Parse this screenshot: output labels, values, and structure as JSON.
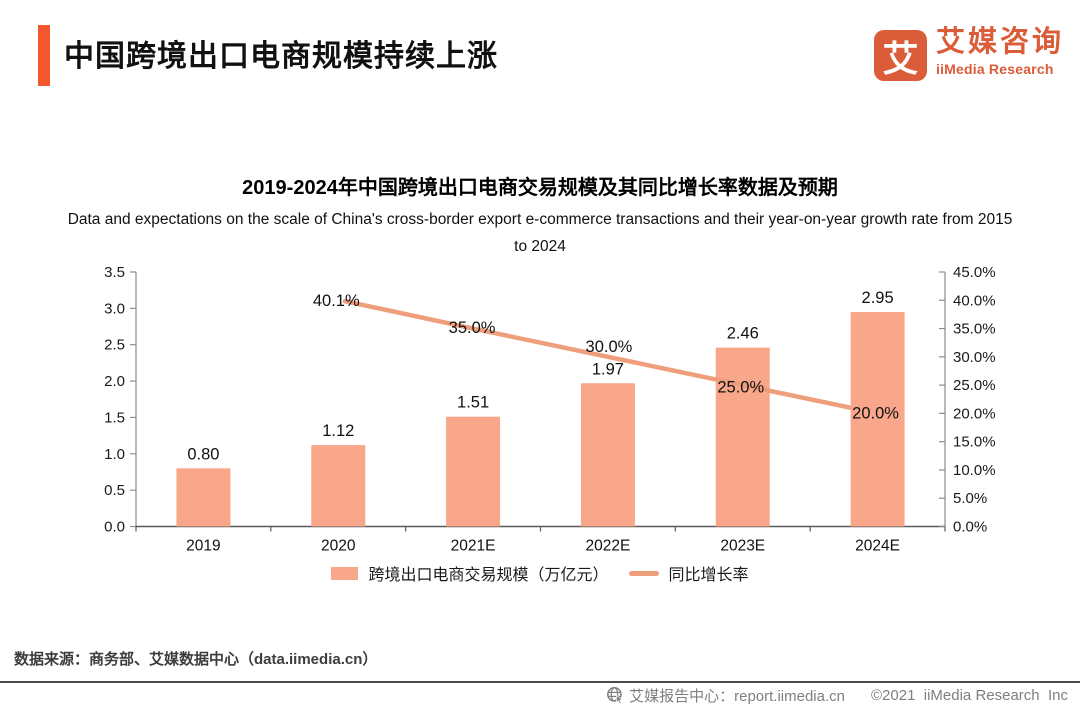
{
  "header": {
    "title": "中国跨境出口电商规模持续上涨",
    "logo": {
      "glyph": "艾",
      "name_cn": "艾媒咨询",
      "name_en": "iiMedia Research"
    }
  },
  "chart_data": {
    "type": "combo-bar-line",
    "title": "2019-2024年中国跨境出口电商交易规模及其同比增长率数据及预期",
    "subtitle": "Data and expectations on the scale of China's cross-border export e-commerce transactions and their year-on-year growth rate from 2015 to 2024",
    "categories": [
      "2019",
      "2020",
      "2021E",
      "2022E",
      "2023E",
      "2024E"
    ],
    "series": [
      {
        "name": "跨境出口电商交易规模（万亿元）",
        "type": "bar",
        "values": [
          0.8,
          1.12,
          1.51,
          1.97,
          2.46,
          2.95
        ],
        "labels": [
          "0.80",
          "1.12",
          "1.51",
          "1.97",
          "2.46",
          "2.95"
        ],
        "color": "#F9A78B"
      },
      {
        "name": "同比增长率",
        "type": "line",
        "values": [
          null,
          40.1,
          35.0,
          30.0,
          25.0,
          20.0
        ],
        "labels": [
          null,
          "40.1%",
          "35.0%",
          "30.0%",
          "25.0%",
          "20.0%"
        ],
        "color": "#EF9E7B"
      }
    ],
    "y_left": {
      "min": 0.0,
      "max": 3.5,
      "step": 0.5,
      "tick_labels": [
        "0.0",
        "0.5",
        "1.0",
        "1.5",
        "2.0",
        "2.5",
        "3.0",
        "3.5"
      ]
    },
    "y_right": {
      "min": 0,
      "max": 45,
      "step": 5,
      "tick_labels": [
        "0.0%",
        "5.0%",
        "10.0%",
        "15.0%",
        "20.0%",
        "25.0%",
        "30.0%",
        "35.0%",
        "40.0%",
        "45.0%"
      ]
    },
    "grid": false,
    "legend_position": "bottom"
  },
  "source": {
    "text": "数据来源：商务部、艾媒数据中心（data.iimedia.cn）"
  },
  "footer": {
    "report_center": "艾媒报告中心：report.iimedia.cn",
    "copyright": "©2021  iiMedia Research  Inc"
  },
  "colors": {
    "accent": "#F4572B",
    "logo": "#DB5C38",
    "bar": "#F9A78B",
    "line": "#EF9E7B",
    "axis": "#8c8c8c",
    "bottom_axis": "#595959",
    "footer_text": "#7f7f7f"
  }
}
